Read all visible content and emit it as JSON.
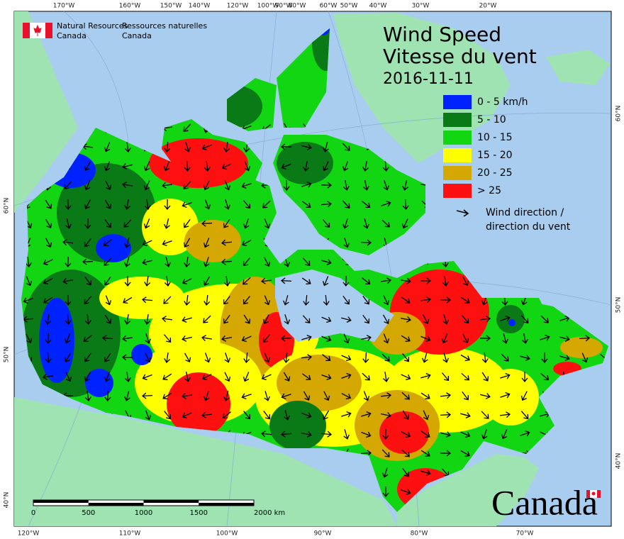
{
  "header": {
    "en_line1": "Natural Resources",
    "en_line2": "Canada",
    "fr_line1": "Ressources naturelles",
    "fr_line2": "Canada"
  },
  "title": {
    "line1": "Wind Speed",
    "line2": "Vitesse du vent",
    "date": "2016-11-11"
  },
  "legend": {
    "items": [
      {
        "label": "0 - 5 km/h",
        "color": "#0022ff"
      },
      {
        "label": "5 - 10",
        "color": "#0a7a17"
      },
      {
        "label": "10 - 15",
        "color": "#12d612"
      },
      {
        "label": "15 - 20",
        "color": "#ffff00"
      },
      {
        "label": "20 - 25",
        "color": "#d4a800"
      },
      {
        "label": "> 25",
        "color": "#ff1010"
      }
    ],
    "direction_line1": "Wind direction /",
    "direction_line2": "direction du vent"
  },
  "graticule": {
    "top": [
      "170°W",
      "160°W",
      "150°W",
      "140°W",
      "120°W",
      "100°W",
      "90°W",
      "80°W",
      "60°W",
      "50°W",
      "40°W",
      "30°W",
      "20°W"
    ],
    "bottom": [
      "120°W",
      "110°W",
      "100°W",
      "90°W",
      "80°W",
      "70°W"
    ],
    "left": [
      "60°N",
      "50°N",
      "40°N"
    ],
    "right": [
      "60°N",
      "50°N",
      "40°N"
    ]
  },
  "scale_bar": {
    "labels": [
      "0",
      "500",
      "1000",
      "1500",
      "2000  km"
    ]
  },
  "wordmark": "Canada"
}
